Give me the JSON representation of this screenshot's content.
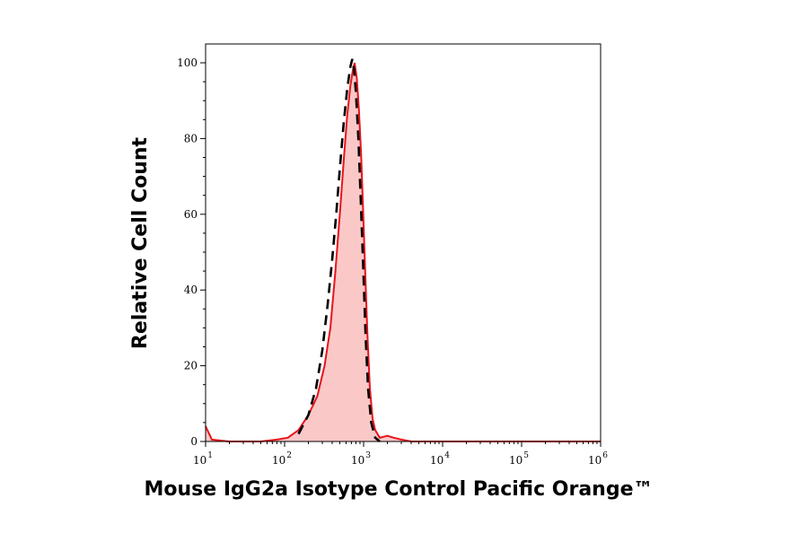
{
  "chart_data": {
    "type": "area",
    "title": "",
    "xlabel": "Mouse IgG2a Isotype Control  Pacific Orange™",
    "ylabel": "Relative Cell Count",
    "x_scale": "log",
    "xlim": [
      10,
      1000000
    ],
    "ylim": [
      0,
      105
    ],
    "x_ticks": [
      {
        "base": "10",
        "exp": "1"
      },
      {
        "base": "10",
        "exp": "2"
      },
      {
        "base": "10",
        "exp": "3"
      },
      {
        "base": "10",
        "exp": "4"
      },
      {
        "base": "10",
        "exp": "5"
      },
      {
        "base": "10",
        "exp": "6"
      }
    ],
    "y_ticks": [
      "0",
      "20",
      "40",
      "60",
      "80",
      "100"
    ],
    "grid": false,
    "legend": "none",
    "series": [
      {
        "style": "filled-solid",
        "color": "#e8141b",
        "fill": "#fbc8c8",
        "points": [
          [
            10,
            4
          ],
          [
            12,
            0.5
          ],
          [
            20,
            0
          ],
          [
            50,
            0
          ],
          [
            80,
            0.5
          ],
          [
            110,
            1
          ],
          [
            150,
            3
          ],
          [
            200,
            7
          ],
          [
            260,
            12
          ],
          [
            320,
            20
          ],
          [
            380,
            30
          ],
          [
            440,
            45
          ],
          [
            500,
            60
          ],
          [
            560,
            74
          ],
          [
            620,
            86
          ],
          [
            680,
            94
          ],
          [
            730,
            98
          ],
          [
            770,
            100
          ],
          [
            820,
            96
          ],
          [
            870,
            88
          ],
          [
            930,
            76
          ],
          [
            990,
            60
          ],
          [
            1050,
            44
          ],
          [
            1120,
            28
          ],
          [
            1200,
            14
          ],
          [
            1300,
            6
          ],
          [
            1400,
            3
          ],
          [
            1600,
            1
          ],
          [
            2000,
            1.5
          ],
          [
            2400,
            1
          ],
          [
            3000,
            0.5
          ],
          [
            4000,
            0
          ],
          [
            10000,
            0
          ],
          [
            100000,
            0
          ],
          [
            1000000,
            0
          ]
        ]
      },
      {
        "style": "dashed",
        "color": "#000000",
        "points": [
          [
            150,
            2
          ],
          [
            200,
            7
          ],
          [
            250,
            14
          ],
          [
            300,
            24
          ],
          [
            350,
            36
          ],
          [
            400,
            48
          ],
          [
            450,
            60
          ],
          [
            500,
            72
          ],
          [
            560,
            84
          ],
          [
            620,
            93
          ],
          [
            680,
            99
          ],
          [
            720,
            101
          ],
          [
            760,
            98
          ],
          [
            800,
            92
          ],
          [
            860,
            80
          ],
          [
            920,
            64
          ],
          [
            990,
            46
          ],
          [
            1060,
            28
          ],
          [
            1140,
            14
          ],
          [
            1250,
            5
          ],
          [
            1400,
            1
          ],
          [
            1600,
            0
          ]
        ]
      }
    ]
  }
}
